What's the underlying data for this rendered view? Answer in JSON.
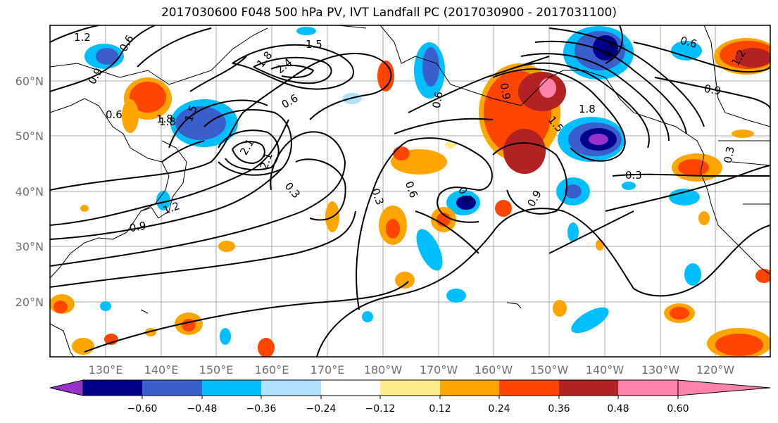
{
  "title": "2017030600 F048 500 hPa PV, IVT Landfall PC (2017030900 - 2017031100)",
  "lat_labels": [
    "60°N",
    "50°N",
    "40°N",
    "30°N",
    "20°N"
  ],
  "lon_labels": [
    "130°E",
    "140°E",
    "150°E",
    "160°E",
    "170°E",
    "180°W",
    "170°W",
    "160°W",
    "150°W",
    "140°W",
    "130°W",
    "120°W"
  ],
  "colorbar": {
    "colors": [
      "#9932cc",
      "#00008b",
      "#3a5fcd",
      "#00bfff",
      "#b0e2ff",
      "#ffffff",
      "#ffec8b",
      "#ffa500",
      "#ff4500",
      "#b22222",
      "#ff82ab"
    ],
    "tick_labels": [
      "−0.60",
      "−0.48",
      "−0.36",
      "−0.24",
      "−0.12",
      "0.12",
      "0.24",
      "0.36",
      "0.48",
      "0.60"
    ]
  },
  "contour_labels": [
    "1.2",
    "0.6",
    "0.9",
    "1.5",
    "1.8",
    "2.1",
    "2.4",
    "0.3",
    "0.6",
    "1.5",
    "1.8",
    "2.1",
    "1.8",
    "1.2",
    "0.9",
    "0.3",
    "0.6",
    "0.3",
    "0.9",
    "0.6",
    "0.9",
    "0.6",
    "1.8",
    "1.5",
    "0.9",
    "0.3",
    "0.6",
    "0.9",
    "0.3",
    "1.2"
  ]
}
